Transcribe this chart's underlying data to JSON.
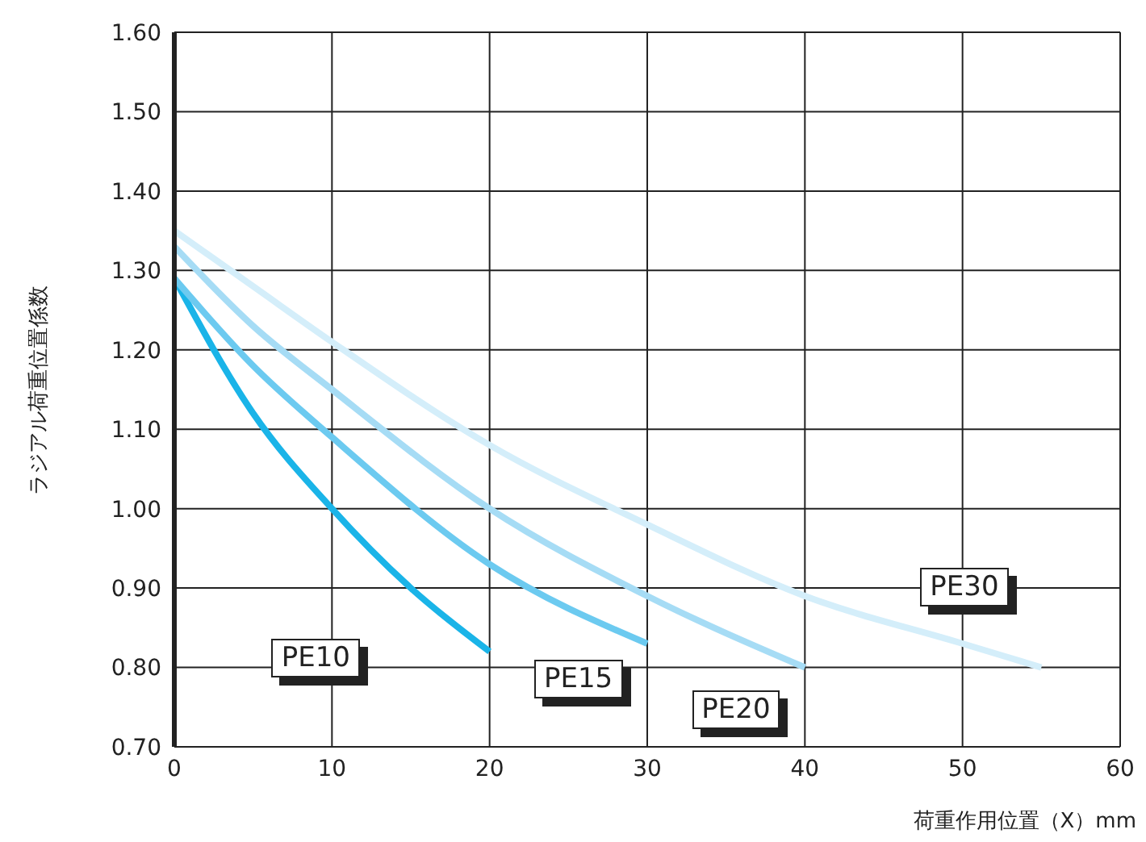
{
  "chart_data": {
    "type": "line",
    "xlabel": "荷重作用位置（X）mm",
    "ylabel": "ラジアル荷重位置係数",
    "xlim": [
      0,
      60
    ],
    "xticks": [
      0,
      10,
      20,
      30,
      40,
      50,
      60
    ],
    "ylim": [
      0.7,
      1.6
    ],
    "yticks": [
      {
        "value": 0.7,
        "label": "0.70"
      },
      {
        "value": 0.8,
        "label": "0.80"
      },
      {
        "value": 0.9,
        "label": "0.90"
      },
      {
        "value": 1.0,
        "label": "1.00"
      },
      {
        "value": 1.1,
        "label": "1.10"
      },
      {
        "value": 1.2,
        "label": "1.20"
      },
      {
        "value": 1.3,
        "label": "1.30"
      },
      {
        "value": 1.4,
        "label": "1.40"
      },
      {
        "value": 1.5,
        "label": "1.50"
      },
      {
        "value": 1.6,
        "label": "1.60"
      }
    ],
    "grid": true,
    "marker": "none",
    "line_style": "solid",
    "series": [
      {
        "name": "PE10",
        "color": "#1ab4e8",
        "x": [
          0,
          5,
          10,
          15,
          20
        ],
        "values": [
          1.29,
          1.12,
          1.0,
          0.9,
          0.82
        ]
      },
      {
        "name": "PE15",
        "color": "#6ccaf0",
        "x": [
          0,
          5,
          10,
          20,
          30
        ],
        "values": [
          1.29,
          1.18,
          1.09,
          0.93,
          0.83
        ]
      },
      {
        "name": "PE20",
        "color": "#a6dcf5",
        "x": [
          0,
          5,
          10,
          20,
          30,
          40
        ],
        "values": [
          1.33,
          1.23,
          1.15,
          1.0,
          0.89,
          0.8
        ]
      },
      {
        "name": "PE30",
        "color": "#d4eefa",
        "x": [
          0,
          5,
          10,
          20,
          30,
          40,
          50,
          55
        ],
        "values": [
          1.35,
          1.28,
          1.21,
          1.08,
          0.98,
          0.89,
          0.83,
          0.8
        ]
      }
    ]
  }
}
